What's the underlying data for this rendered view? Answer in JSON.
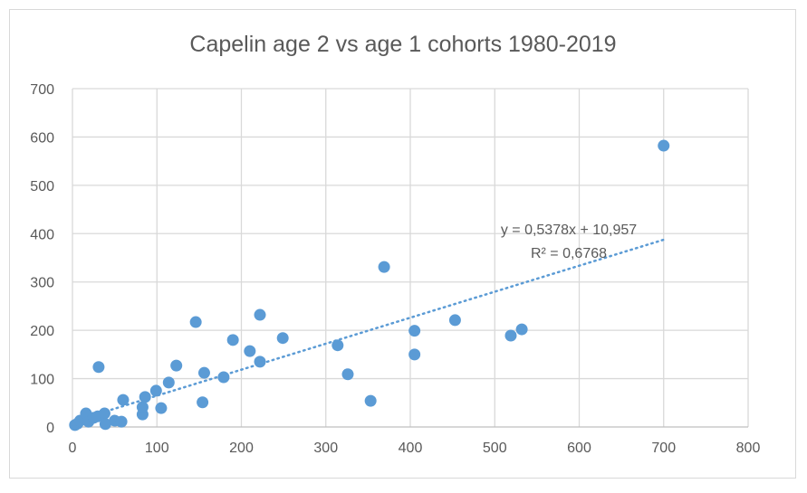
{
  "chart_data": {
    "type": "scatter",
    "title": "Capelin age 2 vs age 1 cohorts 1980-2019",
    "xlabel": "",
    "ylabel": "",
    "xlim": [
      0,
      800
    ],
    "ylim": [
      0,
      700
    ],
    "x_ticks": [
      0,
      100,
      200,
      300,
      400,
      500,
      600,
      700,
      800
    ],
    "y_ticks": [
      0,
      100,
      200,
      300,
      400,
      500,
      600,
      700
    ],
    "grid": true,
    "legend": "none",
    "marker_color": "#5B9BD5",
    "trendline_color": "#5B9BD5",
    "points": [
      [
        3,
        4
      ],
      [
        6,
        7
      ],
      [
        9,
        13
      ],
      [
        16,
        28
      ],
      [
        19,
        11
      ],
      [
        25,
        19
      ],
      [
        30,
        22
      ],
      [
        31,
        124
      ],
      [
        38,
        28
      ],
      [
        39,
        6
      ],
      [
        50,
        13
      ],
      [
        58,
        11
      ],
      [
        60,
        56
      ],
      [
        83,
        26
      ],
      [
        83,
        41
      ],
      [
        86,
        62
      ],
      [
        99,
        75
      ],
      [
        105,
        39
      ],
      [
        114,
        92
      ],
      [
        123,
        127
      ],
      [
        146,
        217
      ],
      [
        154,
        51
      ],
      [
        156,
        112
      ],
      [
        179,
        103
      ],
      [
        190,
        180
      ],
      [
        210,
        157
      ],
      [
        222,
        232
      ],
      [
        222,
        135
      ],
      [
        249,
        184
      ],
      [
        314,
        169
      ],
      [
        326,
        109
      ],
      [
        353,
        54
      ],
      [
        369,
        331
      ],
      [
        405,
        199
      ],
      [
        405,
        150
      ],
      [
        453,
        221
      ],
      [
        519,
        189
      ],
      [
        532,
        202
      ],
      [
        700,
        582
      ]
    ],
    "trendline": {
      "type": "linear",
      "slope": 0.5378,
      "intercept": 10.957,
      "equation": "y = 0,5378x + 10,957",
      "r_squared": "R² = 0,6768"
    }
  }
}
